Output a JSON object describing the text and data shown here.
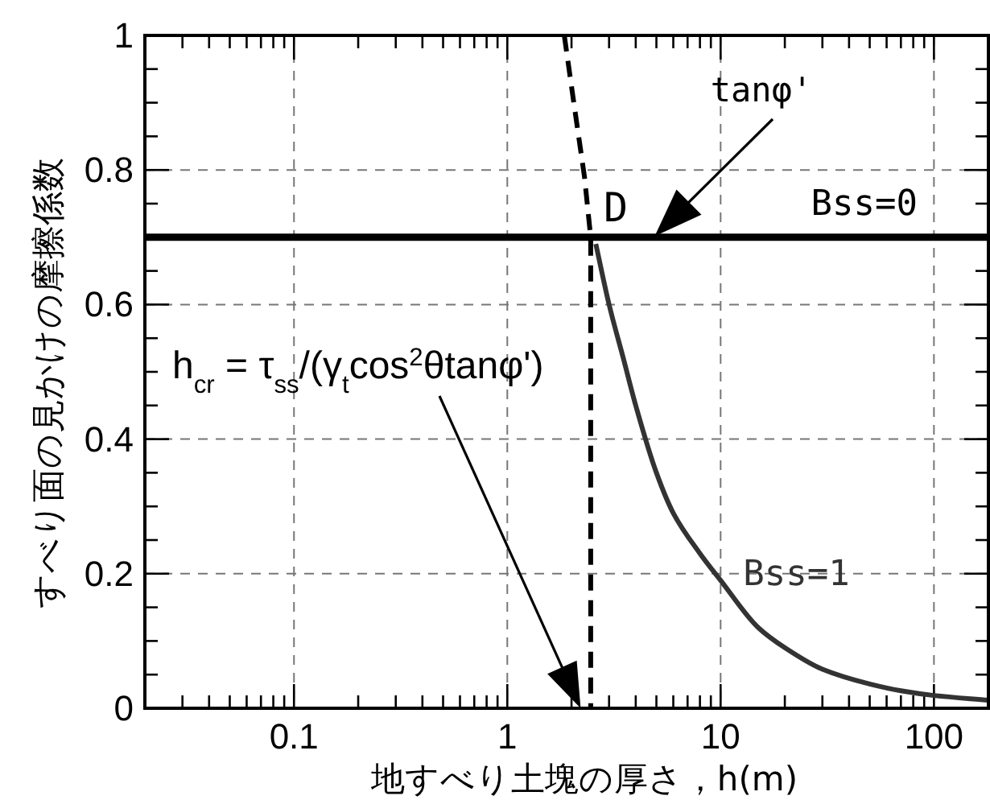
{
  "chart_data": {
    "type": "line",
    "xlabel": "地すべり土塊の厚さ，h(m)",
    "ylabel": "すべり面の見かけの摩擦係数",
    "log": "x",
    "xlim": [
      0.02,
      180
    ],
    "xticks": [
      0.1,
      1,
      10,
      100
    ],
    "ylim": [
      0,
      1
    ],
    "yticks": [
      0,
      0.2,
      0.4,
      0.6,
      0.8,
      1
    ],
    "grid": true,
    "series": [
      {
        "name": "Bss=0",
        "color": "#000000",
        "x": [
          0.02,
          180
        ],
        "values": [
          0.7,
          0.7
        ]
      },
      {
        "name": "Bss=1",
        "color": "#333333",
        "x": [
          2.6,
          3,
          3.5,
          4,
          5,
          6,
          8,
          10,
          15,
          20,
          30,
          50,
          70,
          100,
          180
        ],
        "values": [
          0.69,
          0.6,
          0.52,
          0.45,
          0.35,
          0.29,
          0.23,
          0.19,
          0.12,
          0.09,
          0.058,
          0.036,
          0.026,
          0.019,
          0.012
        ]
      },
      {
        "color": "#000000",
        "line_style": "dashed",
        "x": [
          1.85,
          2.05,
          2.3,
          2.46,
          2.46
        ],
        "values": [
          1,
          0.9,
          0.79,
          0.7,
          0
        ]
      }
    ],
    "annotations": [
      {
        "text": "D",
        "x": 2.46,
        "y": 0.7
      },
      "tanφ'",
      "h$_{cr}$ = τ$_{ss}$/(γ$_{t}$cos$^{2}$θtanφ')"
    ]
  }
}
